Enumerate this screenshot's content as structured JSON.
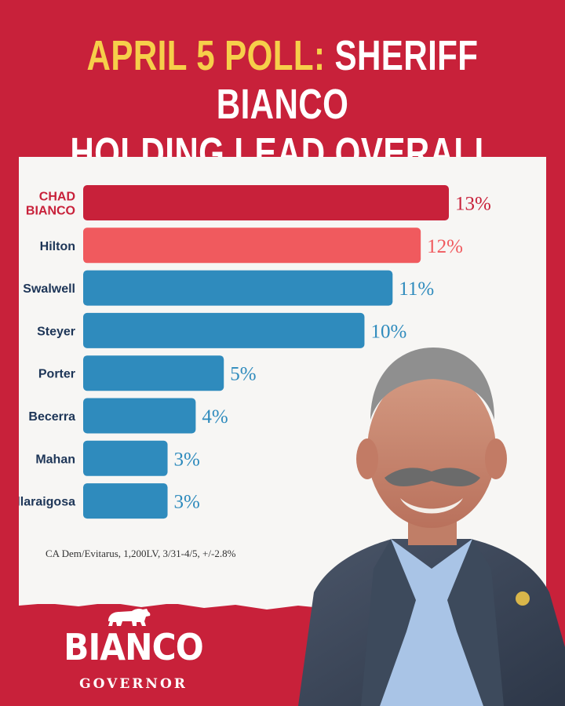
{
  "headline": {
    "accent": "APRIL 5 POLL:",
    "rest_line1": "SHERIFF BIANCO",
    "line2": "HOLDING LEAD OVERALL"
  },
  "chart_data": {
    "type": "bar",
    "orientation": "horizontal",
    "categories": [
      "CHAD BIANCO",
      "Hilton",
      "Swalwell",
      "Steyer",
      "Porter",
      "Becerra",
      "Mahan",
      "Villaraigosa"
    ],
    "category_lines": [
      [
        "CHAD",
        "BIANCO"
      ],
      [
        "Hilton"
      ],
      [
        "Swalwell"
      ],
      [
        "Steyer"
      ],
      [
        "Porter"
      ],
      [
        "Becerra"
      ],
      [
        "Mahan"
      ],
      [
        "Villaraigosa"
      ]
    ],
    "values": [
      13,
      12,
      11,
      10,
      5,
      4,
      3,
      3
    ],
    "value_labels": [
      "13%",
      "12%",
      "11%",
      "10%",
      "5%",
      "4%",
      "3%",
      "3%"
    ],
    "bar_colors": [
      "#c8213a",
      "#f05a5e",
      "#2f8bbd",
      "#2f8bbd",
      "#2f8bbd",
      "#2f8bbd",
      "#2f8bbd",
      "#2f8bbd"
    ],
    "label_colors": [
      "#c8213a",
      "#1d3557",
      "#1d3557",
      "#1d3557",
      "#1d3557",
      "#1d3557",
      "#1d3557",
      "#1d3557"
    ],
    "value_label_colors": [
      "#c8213a",
      "#f05a5e",
      "#2f8bbd",
      "#2f8bbd",
      "#2f8bbd",
      "#2f8bbd",
      "#2f8bbd",
      "#2f8bbd"
    ],
    "xlim": [
      0,
      13
    ],
    "grid": false,
    "legend": "none"
  },
  "source_note": "CA Dem/Evitarus, 1,200LV, 3/31-4/5, +/-2.8%",
  "logo": {
    "name": "BIANCO",
    "subtitle": "GOVERNOR",
    "icon": "california-bear-icon"
  },
  "photo": {
    "subject": "candidate-portrait"
  },
  "colors": {
    "background": "#c8213a",
    "accent_yellow": "#f6cf4a",
    "panel": "#f7f6f4",
    "bianco_red": "#c8213a",
    "hilton_red": "#f05a5e",
    "dem_blue": "#2f8bbd",
    "label_navy": "#1d3557"
  }
}
